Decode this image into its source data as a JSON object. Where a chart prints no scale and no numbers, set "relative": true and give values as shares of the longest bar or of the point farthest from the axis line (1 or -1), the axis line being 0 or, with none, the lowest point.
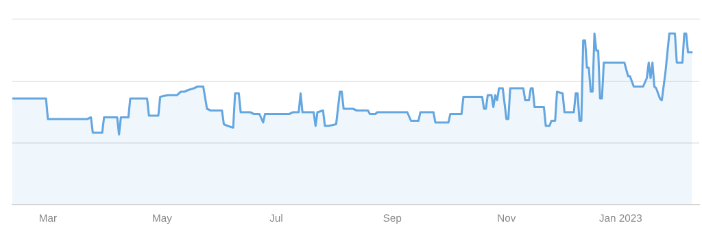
{
  "chart_data": {
    "type": "area",
    "relative": true,
    "legend": false,
    "ref_lines": [
      {
        "axis": "y",
        "value": 0.36,
        "color": "#e3e3e3"
      },
      {
        "axis": "y",
        "value": 0.72,
        "color": "#e3e3e3"
      }
    ],
    "xlim": [
      "2022-02-10",
      "2023-02-12"
    ],
    "xticks": [
      {
        "value": "2022-03-01",
        "label": "Mar"
      },
      {
        "value": "2022-05-01",
        "label": "May"
      },
      {
        "value": "2022-07-01",
        "label": "Jul"
      },
      {
        "value": "2022-09-01",
        "label": "Sep"
      },
      {
        "value": "2022-11-01",
        "label": "Nov"
      },
      {
        "value": "2023-01-01",
        "label": "Jan 2023"
      }
    ],
    "series": [
      {
        "color": "#64a6e0",
        "x": [
          "2022-02-10",
          "2022-02-20",
          "2022-02-28",
          "2022-03-01",
          "2022-03-22",
          "2022-03-24",
          "2022-03-25",
          "2022-03-30",
          "2022-03-31",
          "2022-04-07",
          "2022-04-08",
          "2022-04-09",
          "2022-04-13",
          "2022-04-14",
          "2022-04-23",
          "2022-04-24",
          "2022-04-29",
          "2022-04-30",
          "2022-05-04",
          "2022-05-09",
          "2022-05-11",
          "2022-05-13",
          "2022-05-15",
          "2022-05-18",
          "2022-05-20",
          "2022-05-23",
          "2022-05-25",
          "2022-05-27",
          "2022-06-02",
          "2022-06-03",
          "2022-06-05",
          "2022-06-08",
          "2022-06-09",
          "2022-06-11",
          "2022-06-12",
          "2022-06-17",
          "2022-06-19",
          "2022-06-22",
          "2022-06-24",
          "2022-06-25",
          "2022-07-08",
          "2022-07-10",
          "2022-07-13",
          "2022-07-14",
          "2022-07-15",
          "2022-07-21",
          "2022-07-22",
          "2022-07-23",
          "2022-07-26",
          "2022-07-27",
          "2022-07-29",
          "2022-08-02",
          "2022-08-04",
          "2022-08-05",
          "2022-08-06",
          "2022-08-11",
          "2022-08-13",
          "2022-08-19",
          "2022-08-20",
          "2022-08-23",
          "2022-08-24",
          "2022-09-07",
          "2022-09-09",
          "2022-09-11",
          "2022-09-15",
          "2022-09-16",
          "2022-09-23",
          "2022-09-24",
          "2022-09-27",
          "2022-10-01",
          "2022-10-02",
          "2022-10-06",
          "2022-10-08",
          "2022-10-09",
          "2022-10-19",
          "2022-10-20",
          "2022-10-21",
          "2022-10-22",
          "2022-10-24",
          "2022-10-25",
          "2022-10-26",
          "2022-10-27",
          "2022-10-28",
          "2022-10-30",
          "2022-11-01",
          "2022-11-02",
          "2022-11-03",
          "2022-11-10",
          "2022-11-11",
          "2022-11-13",
          "2022-11-14",
          "2022-11-15",
          "2022-11-16",
          "2022-11-21",
          "2022-11-22",
          "2022-11-24",
          "2022-11-25",
          "2022-11-27",
          "2022-11-28",
          "2022-12-01",
          "2022-12-02",
          "2022-12-07",
          "2022-12-08",
          "2022-12-09",
          "2022-12-10",
          "2022-12-11",
          "2022-12-12",
          "2022-12-13",
          "2022-12-14",
          "2022-12-15",
          "2022-12-16",
          "2022-12-17",
          "2022-12-18",
          "2022-12-19",
          "2022-12-20",
          "2022-12-21",
          "2022-12-22",
          "2022-12-23",
          "2022-12-31",
          "2023-01-01",
          "2023-01-03",
          "2023-01-05",
          "2023-01-06",
          "2023-01-08",
          "2023-01-13",
          "2023-01-15",
          "2023-01-16",
          "2023-01-17",
          "2023-01-18",
          "2023-01-19",
          "2023-01-20",
          "2023-01-22",
          "2023-01-23",
          "2023-01-25",
          "2023-01-27",
          "2023-01-30",
          "2023-01-31",
          "2023-02-03",
          "2023-02-04",
          "2023-02-05",
          "2023-02-06",
          "2023-02-08"
        ],
        "values": [
          0.62,
          0.62,
          0.62,
          0.5,
          0.5,
          0.51,
          0.42,
          0.42,
          0.51,
          0.51,
          0.41,
          0.51,
          0.51,
          0.62,
          0.62,
          0.52,
          0.52,
          0.63,
          0.64,
          0.64,
          0.66,
          0.66,
          0.67,
          0.68,
          0.69,
          0.69,
          0.56,
          0.55,
          0.55,
          0.47,
          0.46,
          0.45,
          0.65,
          0.65,
          0.54,
          0.54,
          0.53,
          0.53,
          0.48,
          0.53,
          0.53,
          0.54,
          0.54,
          0.65,
          0.54,
          0.54,
          0.46,
          0.54,
          0.55,
          0.46,
          0.46,
          0.47,
          0.66,
          0.66,
          0.56,
          0.56,
          0.55,
          0.55,
          0.53,
          0.53,
          0.54,
          0.54,
          0.54,
          0.49,
          0.49,
          0.54,
          0.54,
          0.48,
          0.48,
          0.48,
          0.53,
          0.53,
          0.53,
          0.63,
          0.63,
          0.56,
          0.56,
          0.64,
          0.64,
          0.57,
          0.64,
          0.61,
          0.68,
          0.68,
          0.5,
          0.5,
          0.68,
          0.68,
          0.61,
          0.61,
          0.68,
          0.68,
          0.57,
          0.57,
          0.46,
          0.46,
          0.49,
          0.49,
          0.66,
          0.65,
          0.54,
          0.54,
          0.65,
          0.65,
          0.49,
          0.49,
          0.96,
          0.96,
          0.8,
          0.8,
          0.66,
          0.66,
          1.0,
          0.9,
          0.9,
          0.62,
          0.62,
          0.83,
          0.83,
          0.83,
          0.83,
          0.75,
          0.75,
          0.69,
          0.69,
          0.74,
          0.83,
          0.74,
          0.83,
          0.69,
          0.68,
          0.62,
          0.61,
          0.78,
          1.0,
          1.0,
          0.83,
          0.83,
          1.0,
          1.0,
          0.89,
          0.89
        ]
      }
    ]
  }
}
